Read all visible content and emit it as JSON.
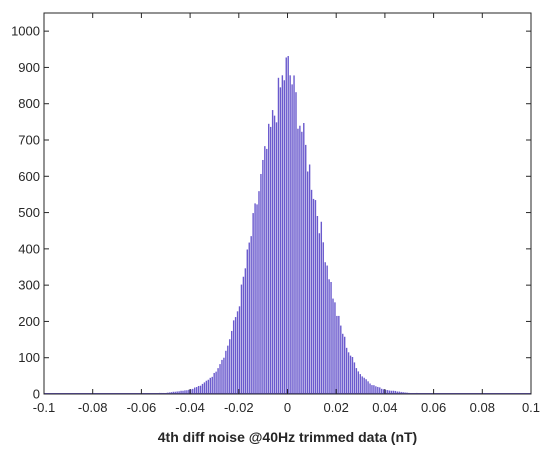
{
  "chart_data": {
    "type": "bar",
    "subtype": "histogram",
    "title": "",
    "xlabel": "4th diff noise @40Hz trimmed data (nT)",
    "ylabel": "",
    "xlim": [
      -0.1,
      0.1
    ],
    "ylim": [
      0,
      1050
    ],
    "xticks": [
      -0.1,
      -0.08,
      -0.06,
      -0.04,
      -0.02,
      0,
      0.02,
      0.04,
      0.06,
      0.08,
      0.1
    ],
    "xtick_labels": [
      "-0.1",
      "-0.08",
      "-0.06",
      "-0.04",
      "-0.02",
      "0",
      "0.02",
      "0.04",
      "0.06",
      "0.08",
      "0.1"
    ],
    "yticks": [
      0,
      100,
      200,
      300,
      400,
      500,
      600,
      700,
      800,
      900,
      1000
    ],
    "ytick_labels": [
      "0",
      "100",
      "200",
      "300",
      "400",
      "500",
      "600",
      "700",
      "800",
      "900",
      "1000"
    ],
    "grid": false,
    "legend": "none",
    "bar_color": "#6a5acd",
    "bin_width": 0.0008,
    "x": [
      -0.05,
      -0.04,
      -0.035,
      -0.03,
      -0.025,
      -0.02,
      -0.015,
      -0.01,
      -0.005,
      -0.002,
      0,
      0.002,
      0.005,
      0.01,
      0.015,
      0.02,
      0.025,
      0.03,
      0.035,
      0.04,
      0.05
    ],
    "values": [
      3,
      12,
      25,
      55,
      120,
      240,
      430,
      620,
      780,
      860,
      905,
      860,
      760,
      590,
      410,
      230,
      120,
      55,
      25,
      12,
      3
    ]
  }
}
